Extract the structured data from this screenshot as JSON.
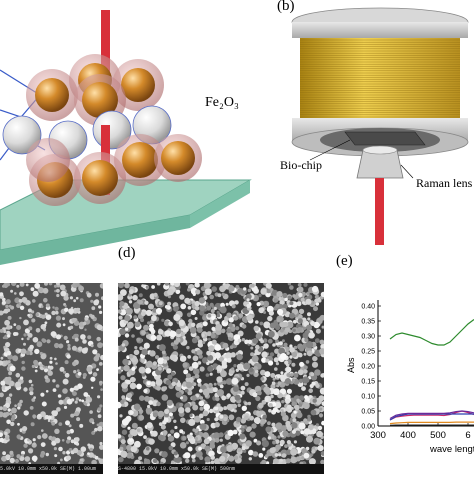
{
  "panels": {
    "a": {
      "formula_label": "Fe₂O₃"
    },
    "b": {
      "panel_label": "(b)",
      "biochip_label": "Bio-chip",
      "raman_label": "Raman lens"
    },
    "c": {
      "scale_text": "5.0kV 10.0mm x50.0k SE(M) 1.00um"
    },
    "d": {
      "panel_label": "(d)",
      "scale_text": "S-4800 15.0kV 10.0mm x50.0k SE(M) 500nm"
    },
    "e": {
      "panel_label": "(e)"
    }
  },
  "colors": {
    "fe_sphere": "#c97a1e",
    "shell": "#d49a9a",
    "white_sphere": "#e6e6e6",
    "rod": "#d8303a",
    "slab": "#86c8b0",
    "coil": "#d8b42a"
  },
  "chart_data": {
    "type": "line",
    "xlabel": "wave length",
    "ylabel": "Abs",
    "xlim": [
      300,
      620
    ],
    "ylim": [
      0,
      0.42
    ],
    "xticks": [
      "300",
      "400",
      "500",
      "6"
    ],
    "yticks": [
      "0.00",
      "0.05",
      "0.10",
      "0.15",
      "0.20",
      "0.25",
      "0.30",
      "0.35",
      "0.40"
    ],
    "series": [
      {
        "color": "#2e8b2e",
        "x": [
          340,
          360,
          380,
          400,
          420,
          440,
          460,
          480,
          500,
          520,
          540,
          560,
          580,
          600,
          620
        ],
        "values": [
          0.29,
          0.305,
          0.31,
          0.305,
          0.3,
          0.295,
          0.285,
          0.275,
          0.27,
          0.27,
          0.28,
          0.3,
          0.32,
          0.34,
          0.355
        ]
      },
      {
        "color": "#cc2a6a",
        "x": [
          340,
          360,
          380,
          400,
          420,
          440,
          460,
          480,
          500,
          520,
          540,
          560,
          580,
          600,
          620
        ],
        "values": [
          0.02,
          0.03,
          0.033,
          0.035,
          0.036,
          0.036,
          0.036,
          0.036,
          0.036,
          0.035,
          0.038,
          0.045,
          0.05,
          0.045,
          0.038
        ]
      },
      {
        "color": "#2a3fb0",
        "x": [
          340,
          360,
          380,
          400,
          420,
          440,
          460,
          480,
          500,
          520,
          540,
          560,
          580,
          600,
          620
        ],
        "values": [
          0.02,
          0.032,
          0.036,
          0.04,
          0.04,
          0.04,
          0.04,
          0.04,
          0.04,
          0.04,
          0.04,
          0.04,
          0.04,
          0.04,
          0.04
        ]
      },
      {
        "color": "#6a2a9a",
        "x": [
          340,
          360,
          380,
          400,
          420,
          440,
          460,
          480,
          500,
          520,
          540,
          560,
          580,
          600,
          620
        ],
        "values": [
          0.025,
          0.036,
          0.04,
          0.042,
          0.042,
          0.042,
          0.042,
          0.042,
          0.042,
          0.042,
          0.044,
          0.048,
          0.05,
          0.048,
          0.044
        ]
      },
      {
        "color": "#e08a20",
        "x": [
          340,
          360,
          380,
          400,
          420,
          440,
          460,
          480,
          500,
          520,
          540,
          560,
          580,
          600,
          620
        ],
        "values": [
          0.008,
          0.01,
          0.011,
          0.012,
          0.012,
          0.012,
          0.012,
          0.012,
          0.012,
          0.012,
          0.012,
          0.013,
          0.013,
          0.013,
          0.013
        ]
      },
      {
        "color": "#222222",
        "x": [
          340,
          360,
          380,
          400,
          420,
          440,
          460,
          480,
          500,
          520,
          540,
          560,
          580,
          600,
          620
        ],
        "values": [
          0.002,
          0.003,
          0.003,
          0.003,
          0.003,
          0.003,
          0.003,
          0.003,
          0.003,
          0.003,
          0.003,
          0.003,
          0.003,
          0.003,
          0.003
        ]
      }
    ]
  }
}
